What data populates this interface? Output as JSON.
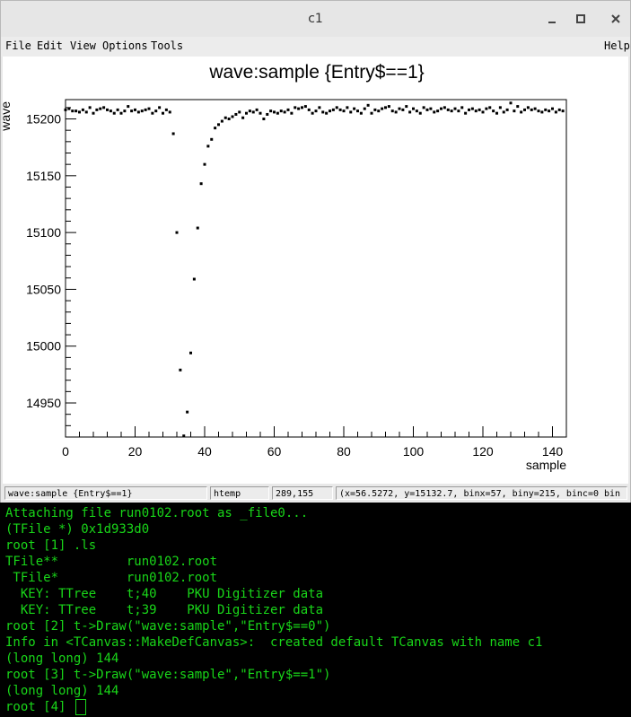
{
  "window": {
    "title": "c1",
    "buttons": [
      "minimize",
      "maximize",
      "close"
    ]
  },
  "menubar": {
    "items": [
      "File",
      "Edit",
      "View",
      "Options",
      "Tools"
    ],
    "help": "Help"
  },
  "chart_data": {
    "type": "scatter",
    "title": "wave:sample {Entry$==1}",
    "xlabel": "sample",
    "ylabel": "wave",
    "xlim": [
      0,
      144
    ],
    "ylim": [
      14920,
      15217
    ],
    "xticks": [
      0,
      20,
      40,
      60,
      80,
      100,
      120,
      140
    ],
    "yticks": [
      14950,
      15000,
      15050,
      15100,
      15150,
      15200
    ],
    "grid": false,
    "series": [
      {
        "x": [
          0,
          1,
          2,
          3,
          4,
          5,
          6,
          7,
          8,
          9,
          10,
          11,
          12,
          13,
          14,
          15,
          16,
          17,
          18,
          19,
          20,
          21,
          22,
          23,
          24,
          25,
          26,
          27,
          28,
          29,
          30,
          31,
          32,
          33,
          34,
          35,
          36,
          37,
          38,
          39,
          40,
          41,
          42,
          43,
          44,
          45,
          46,
          47,
          48,
          49,
          50,
          51,
          52,
          53,
          54,
          55,
          56,
          57,
          58,
          59,
          60,
          61,
          62,
          63,
          64,
          65,
          66,
          67,
          68,
          69,
          70,
          71,
          72,
          73,
          74,
          75,
          76,
          77,
          78,
          79,
          80,
          81,
          82,
          83,
          84,
          85,
          86,
          87,
          88,
          89,
          90,
          91,
          92,
          93,
          94,
          95,
          96,
          97,
          98,
          99,
          100,
          101,
          102,
          103,
          104,
          105,
          106,
          107,
          108,
          109,
          110,
          111,
          112,
          113,
          114,
          115,
          116,
          117,
          118,
          119,
          120,
          121,
          122,
          123,
          124,
          125,
          126,
          127,
          128,
          129,
          130,
          131,
          132,
          133,
          134,
          135,
          136,
          137,
          138,
          139,
          140,
          141,
          142,
          143
        ],
        "y": [
          15208,
          15209,
          15207,
          15207,
          15206,
          15208,
          15206,
          15210,
          15205,
          15208,
          15209,
          15210,
          15208,
          15207,
          15205,
          15208,
          15205,
          15207,
          15211,
          15207,
          15208,
          15206,
          15207,
          15208,
          15209,
          15205,
          15207,
          15210,
          15205,
          15208,
          15206,
          15187,
          15100,
          14979,
          14921,
          14942,
          14994,
          15059,
          15104,
          15143,
          15160,
          15176,
          15182,
          15192,
          15195,
          15198,
          15201,
          15200,
          15202,
          15204,
          15206,
          15201,
          15205,
          15207,
          15206,
          15208,
          15205,
          15200,
          15204,
          15207,
          15206,
          15205,
          15207,
          15206,
          15208,
          15205,
          15210,
          15209,
          15210,
          15211,
          15208,
          15205,
          15207,
          15210,
          15206,
          15205,
          15207,
          15208,
          15210,
          15208,
          15207,
          15210,
          15206,
          15209,
          15207,
          15205,
          15209,
          15212,
          15205,
          15208,
          15207,
          15209,
          15210,
          15211,
          15207,
          15206,
          15209,
          15208,
          15211,
          15206,
          15209,
          15207,
          15205,
          15210,
          15208,
          15209,
          15206,
          15207,
          15209,
          15210,
          15208,
          15207,
          15209,
          15207,
          15210,
          15205,
          15208,
          15209,
          15207,
          15208,
          15206,
          15209,
          15210,
          15207,
          15205,
          15210,
          15206,
          15208,
          15214,
          15207,
          15211,
          15206,
          15208,
          15210,
          15208,
          15209,
          15207,
          15206,
          15208,
          15207,
          15209,
          15206,
          15208,
          15207
        ]
      }
    ]
  },
  "statusbar": {
    "object": "wave:sample {Entry$==1}",
    "type": "htemp",
    "position": "289,155",
    "info": "(x=56.5272, y=15132.7, binx=57, biny=215, binc=0 bin"
  },
  "terminal": {
    "lines": [
      "Attaching file run0102.root as _file0...",
      "(TFile *) 0x1d933d0",
      "root [1] .ls",
      "TFile**         run0102.root",
      " TFile*         run0102.root",
      "  KEY: TTree    t;40    PKU Digitizer data",
      "  KEY: TTree    t;39    PKU Digitizer data",
      "root [2] t->Draw(\"wave:sample\",\"Entry$==0\")",
      "Info in <TCanvas::MakeDefCanvas>:  created default TCanvas with name c1",
      "(long long) 144",
      "root [3] t->Draw(\"wave:sample\",\"Entry$==1\")",
      "(long long) 144"
    ],
    "prompt": "root [4] "
  }
}
